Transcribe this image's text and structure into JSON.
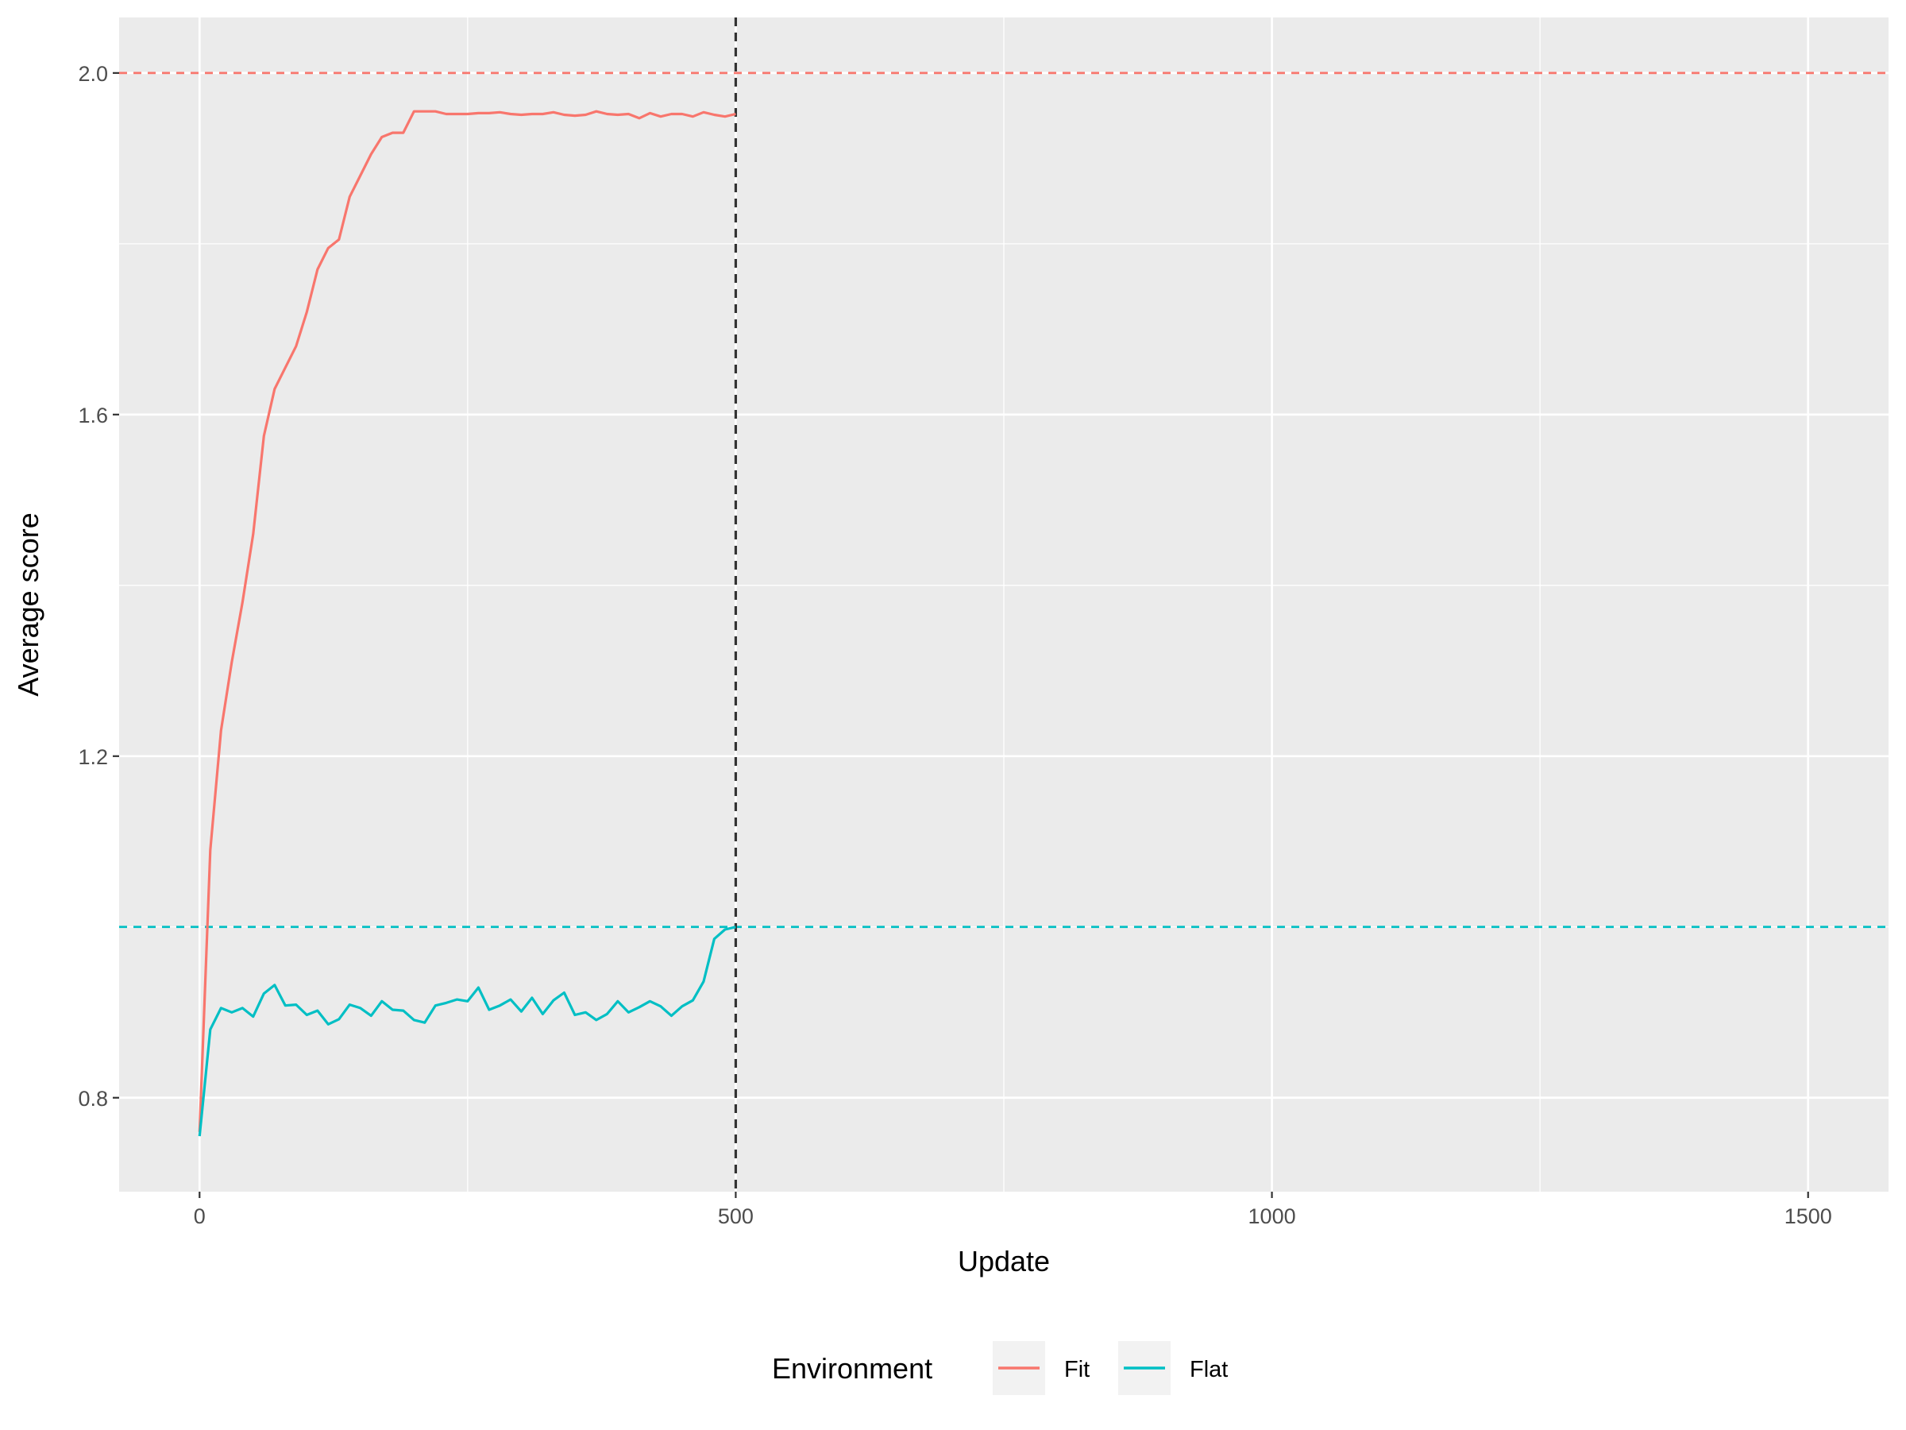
{
  "chart_data": {
    "type": "line",
    "xlabel": "Update",
    "ylabel": "Average score",
    "xlim": [
      -75,
      1575
    ],
    "ylim": [
      0.69,
      2.065
    ],
    "x_ticks": [
      0,
      500,
      1000,
      1500
    ],
    "x_tick_labels": [
      "0",
      "500",
      "1000",
      "1500"
    ],
    "x_minor_ticks": [
      250,
      750,
      1250
    ],
    "y_ticks": [
      0.8,
      1.2,
      1.6,
      2.0
    ],
    "y_tick_labels": [
      "0.8",
      "1.2",
      "1.6",
      "2.0"
    ],
    "y_minor_ticks": [
      1.0,
      1.4,
      1.8
    ],
    "grid": true,
    "legend": {
      "title": "Environment",
      "position": "bottom",
      "entries": [
        "Fit",
        "Flat"
      ]
    },
    "reference_lines": [
      {
        "orientation": "horizontal",
        "value": 2.0,
        "style": "dashed",
        "color": "#f8766d",
        "series": "Fit"
      },
      {
        "orientation": "horizontal",
        "value": 1.0,
        "style": "dashed",
        "color": "#00bfc4",
        "series": "Flat"
      },
      {
        "orientation": "vertical",
        "value": 500,
        "style": "dashed",
        "color": "#333333"
      }
    ],
    "series": [
      {
        "name": "Fit",
        "color": "#f8766d",
        "x": [
          0,
          10,
          20,
          30,
          40,
          50,
          60,
          70,
          80,
          90,
          100,
          110,
          120,
          130,
          140,
          150,
          160,
          170,
          180,
          190,
          200,
          210,
          220,
          230,
          240,
          250,
          260,
          270,
          280,
          290,
          300,
          310,
          320,
          330,
          340,
          350,
          360,
          370,
          380,
          390,
          400,
          410,
          420,
          430,
          440,
          450,
          460,
          470,
          480,
          490,
          500
        ],
        "y": [
          0.76,
          1.09,
          1.23,
          1.31,
          1.38,
          1.46,
          1.575,
          1.63,
          1.655,
          1.68,
          1.72,
          1.77,
          1.795,
          1.805,
          1.855,
          1.88,
          1.905,
          1.925,
          1.93,
          1.93,
          1.955,
          1.955,
          1.955,
          1.952,
          1.952,
          1.952,
          1.953,
          1.953,
          1.954,
          1.952,
          1.951,
          1.952,
          1.952,
          1.954,
          1.951,
          1.95,
          1.951,
          1.955,
          1.952,
          1.951,
          1.952,
          1.947,
          1.953,
          1.949,
          1.952,
          1.952,
          1.949,
          1.954,
          1.951,
          1.949,
          1.952
        ]
      },
      {
        "name": "Flat",
        "color": "#00bfc4",
        "x": [
          0,
          10,
          20,
          30,
          40,
          50,
          60,
          70,
          80,
          90,
          100,
          110,
          120,
          130,
          140,
          150,
          160,
          170,
          180,
          190,
          200,
          210,
          220,
          230,
          240,
          250,
          260,
          270,
          280,
          290,
          300,
          310,
          320,
          330,
          340,
          350,
          360,
          370,
          380,
          390,
          400,
          410,
          420,
          430,
          440,
          450,
          460,
          470,
          480,
          490,
          500
        ],
        "y": [
          0.755,
          0.88,
          0.905,
          0.9,
          0.905,
          0.895,
          0.922,
          0.932,
          0.908,
          0.909,
          0.897,
          0.902,
          0.886,
          0.892,
          0.909,
          0.905,
          0.896,
          0.913,
          0.903,
          0.902,
          0.891,
          0.888,
          0.908,
          0.911,
          0.915,
          0.913,
          0.929,
          0.903,
          0.908,
          0.915,
          0.901,
          0.917,
          0.898,
          0.914,
          0.923,
          0.897,
          0.9,
          0.891,
          0.898,
          0.913,
          0.9,
          0.906,
          0.913,
          0.907,
          0.896,
          0.907,
          0.914,
          0.936,
          0.986,
          0.997,
          1.0
        ]
      }
    ]
  }
}
